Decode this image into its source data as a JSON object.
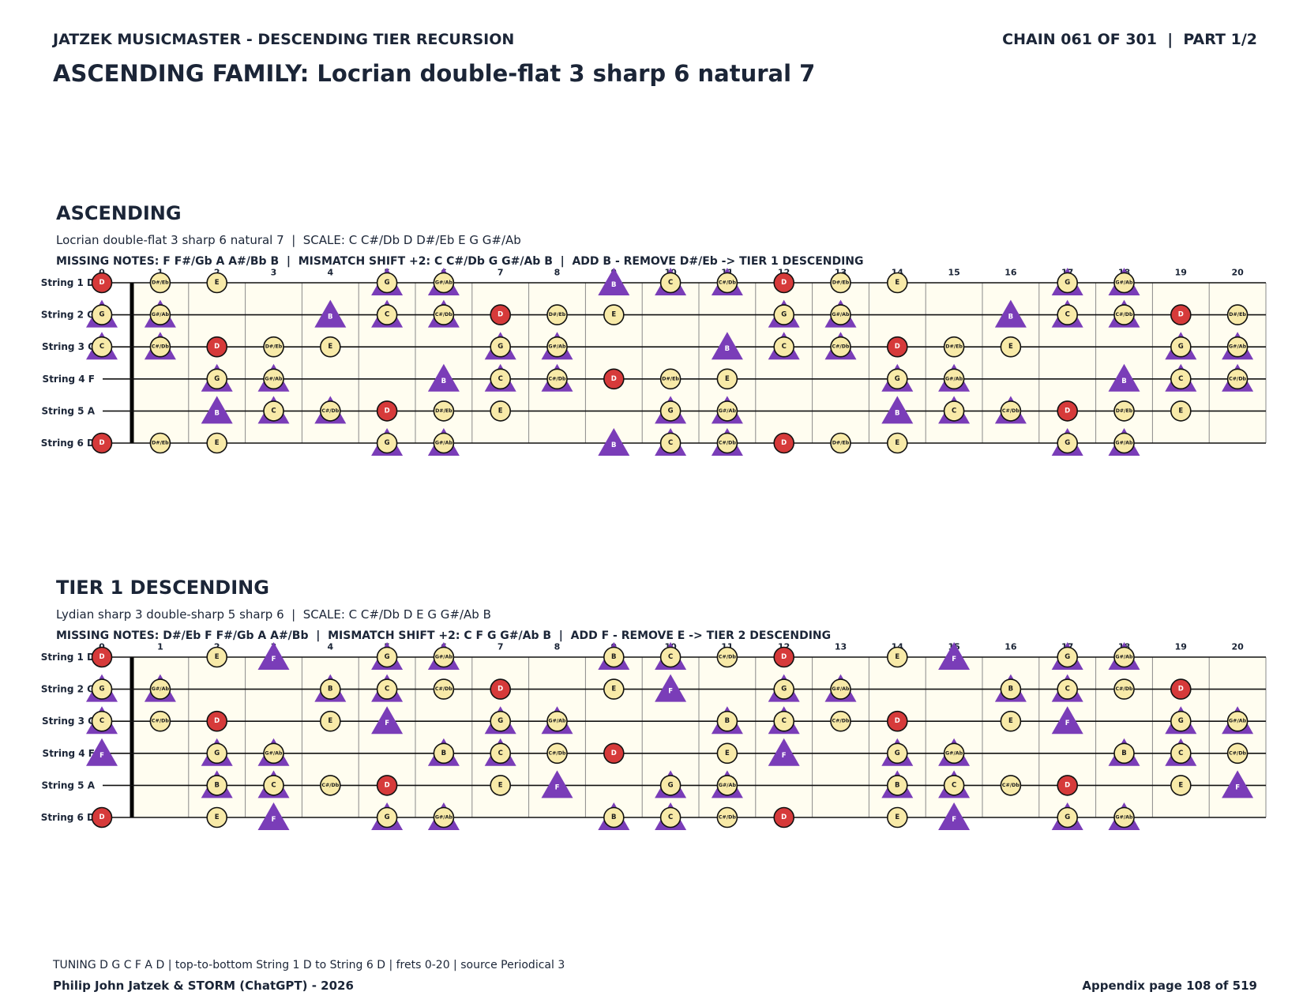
{
  "header": {
    "left": "JATZEK MUSICMASTER - DESCENDING TIER RECURSION",
    "right": "CHAIN 061 OF 301  |  PART 1/2",
    "title": "ASCENDING FAMILY: Locrian double-flat 3 sharp 6 natural 7"
  },
  "frets": [
    0,
    1,
    2,
    3,
    4,
    5,
    6,
    7,
    8,
    9,
    10,
    11,
    12,
    13,
    14,
    15,
    16,
    17,
    18,
    19,
    20
  ],
  "marker_colors": {
    "note": "#f8eaa8",
    "root": "#d63a3a",
    "shift": "#7a3db8",
    "outline": "#111111"
  },
  "boards": [
    {
      "heading": "ASCENDING",
      "scale_line": "Locrian double-flat 3 sharp 6 natural 7  |  SCALE: C C#/Db D D#/Eb E G G#/Ab",
      "missing_line": "MISSING NOTES: F F#/Gb A A#/Bb B  |  MISMATCH SHIFT +2: C C#/Db G G#/Ab B  |  ADD B - REMOVE D#/Eb -> TIER 1 DESCENDING",
      "strings": [
        {
          "label": "String 1 D",
          "markers": [
            [
              0,
              "D",
              "root"
            ],
            [
              1,
              "D#/Eb",
              "note"
            ],
            [
              2,
              "E",
              "note"
            ],
            [
              5,
              "G",
              "both"
            ],
            [
              6,
              "G#/Ab",
              "both"
            ],
            [
              9,
              "B",
              "shift"
            ],
            [
              10,
              "C",
              "both"
            ],
            [
              11,
              "C#/Db",
              "both"
            ],
            [
              12,
              "D",
              "root"
            ],
            [
              13,
              "D#/Eb",
              "note"
            ],
            [
              14,
              "E",
              "note"
            ],
            [
              17,
              "G",
              "both"
            ],
            [
              18,
              "G#/Ab",
              "both"
            ]
          ]
        },
        {
          "label": "String 2 G",
          "markers": [
            [
              0,
              "G",
              "both"
            ],
            [
              1,
              "G#/Ab",
              "both"
            ],
            [
              4,
              "B",
              "shift"
            ],
            [
              5,
              "C",
              "both"
            ],
            [
              6,
              "C#/Db",
              "both"
            ],
            [
              7,
              "D",
              "root"
            ],
            [
              8,
              "D#/Eb",
              "note"
            ],
            [
              9,
              "E",
              "note"
            ],
            [
              12,
              "G",
              "both"
            ],
            [
              13,
              "G#/Ab",
              "both"
            ],
            [
              16,
              "B",
              "shift"
            ],
            [
              17,
              "C",
              "both"
            ],
            [
              18,
              "C#/Db",
              "both"
            ],
            [
              19,
              "D",
              "root"
            ],
            [
              20,
              "D#/Eb",
              "note"
            ]
          ]
        },
        {
          "label": "String 3 C",
          "markers": [
            [
              0,
              "C",
              "both"
            ],
            [
              1,
              "C#/Db",
              "both"
            ],
            [
              2,
              "D",
              "root"
            ],
            [
              3,
              "D#/Eb",
              "note"
            ],
            [
              4,
              "E",
              "note"
            ],
            [
              7,
              "G",
              "both"
            ],
            [
              8,
              "G#/Ab",
              "both"
            ],
            [
              11,
              "B",
              "shift"
            ],
            [
              12,
              "C",
              "both"
            ],
            [
              13,
              "C#/Db",
              "both"
            ],
            [
              14,
              "D",
              "root"
            ],
            [
              15,
              "D#/Eb",
              "note"
            ],
            [
              16,
              "E",
              "note"
            ],
            [
              19,
              "G",
              "both"
            ],
            [
              20,
              "G#/Ab",
              "both"
            ]
          ]
        },
        {
          "label": "String 4 F",
          "markers": [
            [
              2,
              "G",
              "both"
            ],
            [
              3,
              "G#/Ab",
              "both"
            ],
            [
              6,
              "B",
              "shift"
            ],
            [
              7,
              "C",
              "both"
            ],
            [
              8,
              "C#/Db",
              "both"
            ],
            [
              9,
              "D",
              "root"
            ],
            [
              10,
              "D#/Eb",
              "note"
            ],
            [
              11,
              "E",
              "note"
            ],
            [
              14,
              "G",
              "both"
            ],
            [
              15,
              "G#/Ab",
              "both"
            ],
            [
              18,
              "B",
              "shift"
            ],
            [
              19,
              "C",
              "both"
            ],
            [
              20,
              "C#/Db",
              "both"
            ]
          ]
        },
        {
          "label": "String 5 A",
          "markers": [
            [
              2,
              "B",
              "shift"
            ],
            [
              3,
              "C",
              "both"
            ],
            [
              4,
              "C#/Db",
              "both"
            ],
            [
              5,
              "D",
              "root"
            ],
            [
              6,
              "D#/Eb",
              "note"
            ],
            [
              7,
              "E",
              "note"
            ],
            [
              10,
              "G",
              "both"
            ],
            [
              11,
              "G#/Ab",
              "both"
            ],
            [
              14,
              "B",
              "shift"
            ],
            [
              15,
              "C",
              "both"
            ],
            [
              16,
              "C#/Db",
              "both"
            ],
            [
              17,
              "D",
              "root"
            ],
            [
              18,
              "D#/Eb",
              "note"
            ],
            [
              19,
              "E",
              "note"
            ]
          ]
        },
        {
          "label": "String 6 D",
          "markers": [
            [
              0,
              "D",
              "root"
            ],
            [
              1,
              "D#/Eb",
              "note"
            ],
            [
              2,
              "E",
              "note"
            ],
            [
              5,
              "G",
              "both"
            ],
            [
              6,
              "G#/Ab",
              "both"
            ],
            [
              9,
              "B",
              "shift"
            ],
            [
              10,
              "C",
              "both"
            ],
            [
              11,
              "C#/Db",
              "both"
            ],
            [
              12,
              "D",
              "root"
            ],
            [
              13,
              "D#/Eb",
              "note"
            ],
            [
              14,
              "E",
              "note"
            ],
            [
              17,
              "G",
              "both"
            ],
            [
              18,
              "G#/Ab",
              "both"
            ]
          ]
        }
      ]
    },
    {
      "heading": "TIER 1 DESCENDING",
      "scale_line": "Lydian sharp 3 double-sharp 5 sharp 6  |  SCALE: C C#/Db D E G G#/Ab B",
      "missing_line": "MISSING NOTES: D#/Eb F F#/Gb A A#/Bb  |  MISMATCH SHIFT +2: C F G G#/Ab B  |  ADD F - REMOVE E -> TIER 2 DESCENDING",
      "strings": [
        {
          "label": "String 1 D",
          "markers": [
            [
              0,
              "D",
              "root"
            ],
            [
              2,
              "E",
              "note"
            ],
            [
              3,
              "F",
              "shift"
            ],
            [
              5,
              "G",
              "both"
            ],
            [
              6,
              "G#/Ab",
              "both"
            ],
            [
              9,
              "B",
              "both"
            ],
            [
              10,
              "C",
              "both"
            ],
            [
              11,
              "C#/Db",
              "note"
            ],
            [
              12,
              "D",
              "root"
            ],
            [
              14,
              "E",
              "note"
            ],
            [
              15,
              "F",
              "shift"
            ],
            [
              17,
              "G",
              "both"
            ],
            [
              18,
              "G#/Ab",
              "both"
            ]
          ]
        },
        {
          "label": "String 2 G",
          "markers": [
            [
              0,
              "G",
              "both"
            ],
            [
              1,
              "G#/Ab",
              "both"
            ],
            [
              4,
              "B",
              "both"
            ],
            [
              5,
              "C",
              "both"
            ],
            [
              6,
              "C#/Db",
              "note"
            ],
            [
              7,
              "D",
              "root"
            ],
            [
              9,
              "E",
              "note"
            ],
            [
              10,
              "F",
              "shift"
            ],
            [
              12,
              "G",
              "both"
            ],
            [
              13,
              "G#/Ab",
              "both"
            ],
            [
              16,
              "B",
              "both"
            ],
            [
              17,
              "C",
              "both"
            ],
            [
              18,
              "C#/Db",
              "note"
            ],
            [
              19,
              "D",
              "root"
            ]
          ]
        },
        {
          "label": "String 3 C",
          "markers": [
            [
              0,
              "C",
              "both"
            ],
            [
              1,
              "C#/Db",
              "note"
            ],
            [
              2,
              "D",
              "root"
            ],
            [
              4,
              "E",
              "note"
            ],
            [
              5,
              "F",
              "shift"
            ],
            [
              7,
              "G",
              "both"
            ],
            [
              8,
              "G#/Ab",
              "both"
            ],
            [
              11,
              "B",
              "both"
            ],
            [
              12,
              "C",
              "both"
            ],
            [
              13,
              "C#/Db",
              "note"
            ],
            [
              14,
              "D",
              "root"
            ],
            [
              16,
              "E",
              "note"
            ],
            [
              17,
              "F",
              "shift"
            ],
            [
              19,
              "G",
              "both"
            ],
            [
              20,
              "G#/Ab",
              "both"
            ]
          ]
        },
        {
          "label": "String 4 F",
          "markers": [
            [
              0,
              "F",
              "shift"
            ],
            [
              2,
              "G",
              "both"
            ],
            [
              3,
              "G#/Ab",
              "both"
            ],
            [
              6,
              "B",
              "both"
            ],
            [
              7,
              "C",
              "both"
            ],
            [
              8,
              "C#/Db",
              "note"
            ],
            [
              9,
              "D",
              "root"
            ],
            [
              11,
              "E",
              "note"
            ],
            [
              12,
              "F",
              "shift"
            ],
            [
              14,
              "G",
              "both"
            ],
            [
              15,
              "G#/Ab",
              "both"
            ],
            [
              18,
              "B",
              "both"
            ],
            [
              19,
              "C",
              "both"
            ],
            [
              20,
              "C#/Db",
              "note"
            ]
          ]
        },
        {
          "label": "String 5 A",
          "markers": [
            [
              2,
              "B",
              "both"
            ],
            [
              3,
              "C",
              "both"
            ],
            [
              4,
              "C#/Db",
              "note"
            ],
            [
              5,
              "D",
              "root"
            ],
            [
              7,
              "E",
              "note"
            ],
            [
              8,
              "F",
              "shift"
            ],
            [
              10,
              "G",
              "both"
            ],
            [
              11,
              "G#/Ab",
              "both"
            ],
            [
              14,
              "B",
              "both"
            ],
            [
              15,
              "C",
              "both"
            ],
            [
              16,
              "C#/Db",
              "note"
            ],
            [
              17,
              "D",
              "root"
            ],
            [
              19,
              "E",
              "note"
            ],
            [
              20,
              "F",
              "shift"
            ]
          ]
        },
        {
          "label": "String 6 D",
          "markers": [
            [
              0,
              "D",
              "root"
            ],
            [
              2,
              "E",
              "note"
            ],
            [
              3,
              "F",
              "shift"
            ],
            [
              5,
              "G",
              "both"
            ],
            [
              6,
              "G#/Ab",
              "both"
            ],
            [
              9,
              "B",
              "both"
            ],
            [
              10,
              "C",
              "both"
            ],
            [
              11,
              "C#/Db",
              "note"
            ],
            [
              12,
              "D",
              "root"
            ],
            [
              14,
              "E",
              "note"
            ],
            [
              15,
              "F",
              "shift"
            ],
            [
              17,
              "G",
              "both"
            ],
            [
              18,
              "G#/Ab",
              "both"
            ]
          ]
        }
      ]
    }
  ],
  "footer": {
    "note": "TUNING D G C F A D | top-to-bottom String 1 D to String 6 D | frets 0-20 | source Periodical 3",
    "credit": "Philip John Jatzek & STORM (ChatGPT) - 2026",
    "page": "Appendix page 108 of 519"
  }
}
